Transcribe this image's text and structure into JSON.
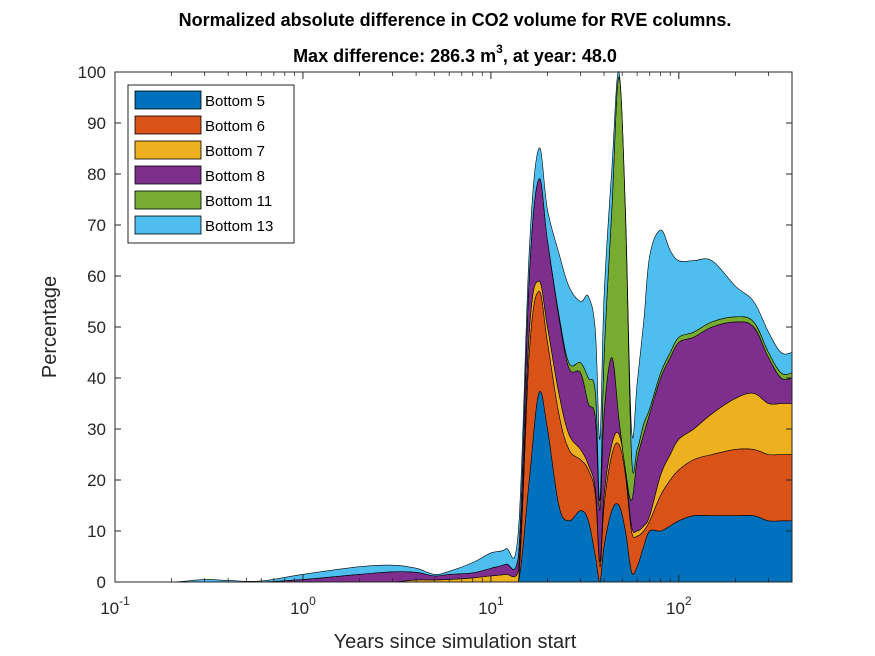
{
  "chart_data": {
    "type": "area",
    "stacked": true,
    "title": "Normalized absolute difference in CO2 volume for RVE columns.",
    "subtitle_prefix": "Max difference: 286.3 m",
    "subtitle_sup": "3",
    "subtitle_suffix": ", at year: 48.0",
    "xlabel": "Years since simulation start",
    "ylabel": "Percentage",
    "xscale": "log",
    "xlim": [
      0.1,
      400
    ],
    "ylim": [
      0,
      100
    ],
    "yticks": [
      "0",
      "10",
      "20",
      "30",
      "40",
      "50",
      "60",
      "70",
      "80",
      "90",
      "100"
    ],
    "xticks": [
      {
        "base": "10",
        "exp": "-1"
      },
      {
        "base": "10",
        "exp": "0"
      },
      {
        "base": "10",
        "exp": "1"
      },
      {
        "base": "10",
        "exp": "2"
      }
    ],
    "legend_position": "top-left",
    "grid": false,
    "x": [
      0.1,
      0.2,
      0.3,
      0.4,
      0.6,
      1.0,
      2.0,
      3.0,
      4.0,
      5.0,
      6.0,
      8.0,
      10.0,
      12.0,
      14.0,
      16.0,
      18.0,
      20.0,
      23.0,
      26.0,
      30.0,
      33.0,
      36.0,
      38.0,
      40.0,
      44.0,
      48.0,
      52.0,
      56.0,
      60.0,
      65.0,
      70.0,
      80.0,
      90.0,
      100.0,
      120.0,
      150.0,
      200.0,
      250.0,
      300.0,
      350.0,
      400.0
    ],
    "series": [
      {
        "name": "Bottom 5",
        "color": "#0072BD",
        "values": [
          0,
          0,
          0,
          0,
          0,
          0,
          0,
          0,
          0,
          0,
          0,
          0,
          0,
          0,
          0,
          20,
          37,
          30,
          15,
          12,
          14,
          12,
          5,
          0,
          7,
          14,
          15,
          10,
          2,
          3,
          7,
          10,
          10,
          11,
          12,
          13,
          13,
          13,
          13,
          12,
          12,
          12
        ]
      },
      {
        "name": "Bottom 6",
        "color": "#D95319",
        "values": [
          0,
          0,
          0,
          0,
          0,
          0,
          0,
          0,
          0,
          0,
          0,
          0,
          0,
          0,
          0,
          25,
          20,
          17,
          18,
          14,
          10,
          10,
          12,
          3,
          8,
          11,
          12,
          11,
          8,
          6,
          3,
          2,
          7,
          9,
          10,
          11,
          12,
          13,
          13,
          13,
          13,
          13
        ]
      },
      {
        "name": "Bottom 7",
        "color": "#EDB120",
        "values": [
          0,
          0,
          0,
          0,
          0,
          0,
          0,
          0,
          0.4,
          0.4,
          0.5,
          0.8,
          1.2,
          1.5,
          2,
          4,
          2,
          3,
          4,
          3,
          2,
          1,
          1,
          1,
          2,
          2,
          2,
          1,
          1,
          1,
          1,
          1,
          4,
          5,
          6,
          6,
          8,
          10,
          11,
          10,
          10,
          10
        ]
      },
      {
        "name": "Bottom 8",
        "color": "#7E2F8E",
        "values": [
          0,
          0,
          0,
          0,
          0,
          0.5,
          1.5,
          2,
          1.5,
          0.8,
          1,
          1,
          1.5,
          2,
          3,
          11,
          20,
          17,
          15,
          13,
          15,
          12,
          14,
          10,
          16,
          17,
          3,
          0,
          5,
          14,
          18,
          20,
          19,
          19,
          19,
          18,
          17,
          15,
          13,
          9,
          5,
          5
        ]
      },
      {
        "name": "Bottom 11",
        "color": "#77AC30",
        "values": [
          0,
          0,
          0,
          0,
          0,
          0,
          0,
          0,
          0,
          0,
          0,
          0,
          0,
          0,
          0,
          0,
          0,
          0,
          0.5,
          1,
          2,
          5,
          5,
          2,
          11,
          29,
          67,
          50,
          9,
          2,
          2,
          1,
          1,
          1,
          1,
          1,
          1,
          1,
          1,
          1,
          1,
          1
        ]
      },
      {
        "name": "Bottom 13",
        "color": "#4DBEEE",
        "values": [
          0,
          0,
          0.5,
          0.3,
          0.2,
          1,
          1.5,
          1.3,
          0.8,
          0.3,
          0.6,
          2,
          3,
          3,
          5,
          5,
          6,
          6,
          12,
          15,
          12,
          16,
          12,
          12,
          12,
          8,
          1,
          1,
          5,
          13,
          20,
          30,
          28,
          20,
          15,
          14,
          12,
          6,
          4,
          4,
          4,
          4
        ]
      }
    ]
  }
}
